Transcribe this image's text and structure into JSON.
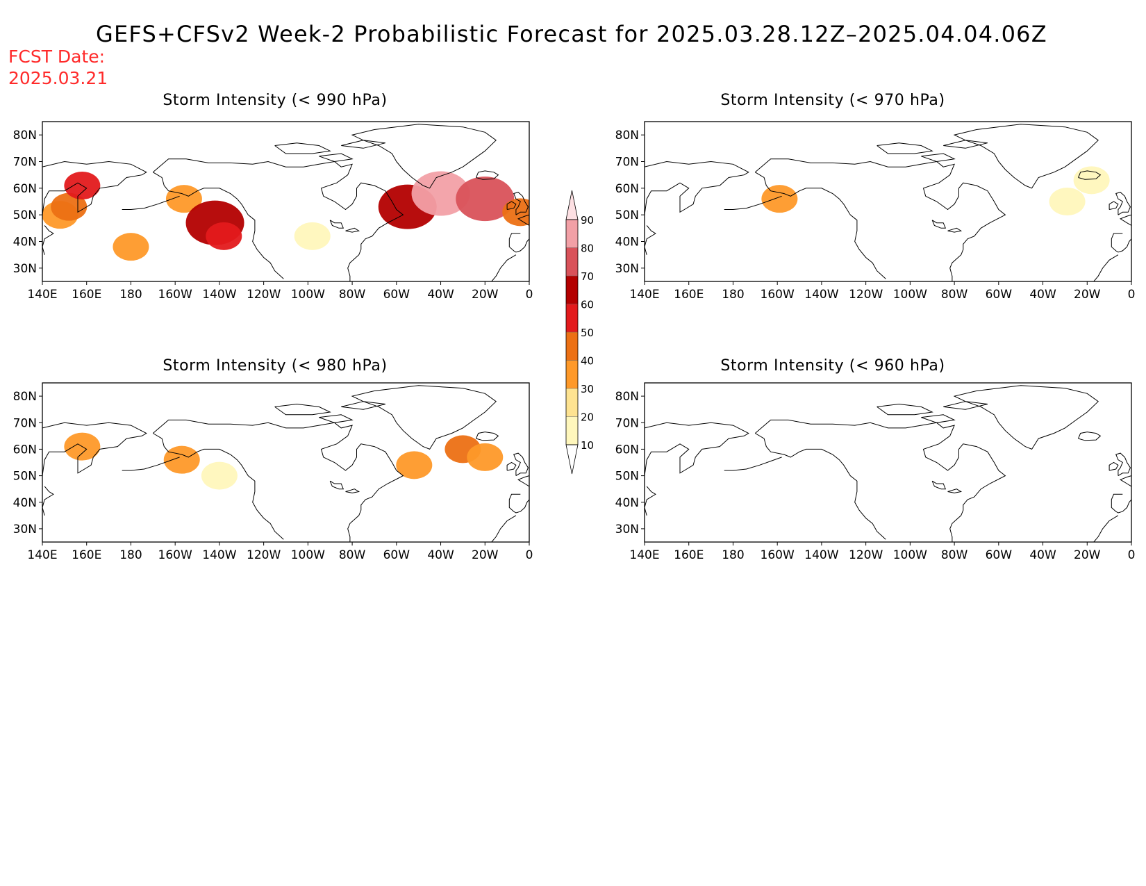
{
  "title": "GEFS+CFSv2 Week-2 Probabilistic Forecast for 2025.03.28.12Z–2025.04.04.06Z",
  "fcst_date": {
    "label": "FCST Date:",
    "value": "2025.03.21"
  },
  "panels": [
    {
      "title": "Storm Intensity (< 990 hPa)",
      "threshold_hPa": 990
    },
    {
      "title": "Storm Intensity (< 970 hPa)",
      "threshold_hPa": 970
    },
    {
      "title": "Storm Intensity (< 980 hPa)",
      "threshold_hPa": 980
    },
    {
      "title": "Storm Intensity (< 960 hPa)",
      "threshold_hPa": 960
    }
  ],
  "lat_ticks": [
    "80N",
    "70N",
    "60N",
    "50N",
    "40N",
    "30N"
  ],
  "lon_ticks": [
    "140E",
    "160E",
    "180",
    "160W",
    "140W",
    "120W",
    "100W",
    "80W",
    "60W",
    "40W",
    "20W",
    "0"
  ],
  "map_extent": {
    "lon_min": 140,
    "lon_max": 360,
    "lat_min": 25,
    "lat_max": 85
  },
  "colorbar": {
    "levels": [
      10,
      20,
      30,
      40,
      50,
      60,
      70,
      80,
      90
    ],
    "labels": [
      "10",
      "20",
      "30",
      "40",
      "50",
      "60",
      "70",
      "80",
      "90"
    ],
    "colors": [
      "#fff7bc",
      "#fee391",
      "#fe9929",
      "#ec7014",
      "#e31a1c",
      "#b30000",
      "#d9525a",
      "#f2a0a6",
      "#fde0e3"
    ]
  },
  "probability_regions": {
    "p990": [
      {
        "lon": 148,
        "lat": 50,
        "level": 30
      },
      {
        "lon": 152,
        "lat": 53,
        "level": 40
      },
      {
        "lon": 158,
        "lat": 61,
        "level": 50
      },
      {
        "lon": 204,
        "lat": 56,
        "level": 30
      },
      {
        "lon": 180,
        "lat": 38,
        "level": 30
      },
      {
        "lon": 218,
        "lat": 47,
        "level": 60
      },
      {
        "lon": 222,
        "lat": 42,
        "level": 50
      },
      {
        "lon": 262,
        "lat": 42,
        "level": 10
      },
      {
        "lon": 305,
        "lat": 53,
        "level": 60
      },
      {
        "lon": 320,
        "lat": 58,
        "level": 80
      },
      {
        "lon": 340,
        "lat": 56,
        "level": 70
      },
      {
        "lon": 356,
        "lat": 51,
        "level": 40
      }
    ],
    "p970": [
      {
        "lon": 201,
        "lat": 56,
        "level": 30
      },
      {
        "lon": 331,
        "lat": 55,
        "level": 10
      },
      {
        "lon": 342,
        "lat": 63,
        "level": 10
      }
    ],
    "p980": [
      {
        "lon": 158,
        "lat": 61,
        "level": 30
      },
      {
        "lon": 203,
        "lat": 56,
        "level": 30
      },
      {
        "lon": 220,
        "lat": 50,
        "level": 10
      },
      {
        "lon": 308,
        "lat": 54,
        "level": 30
      },
      {
        "lon": 330,
        "lat": 60,
        "level": 40
      },
      {
        "lon": 340,
        "lat": 57,
        "level": 30
      }
    ],
    "p960": []
  }
}
